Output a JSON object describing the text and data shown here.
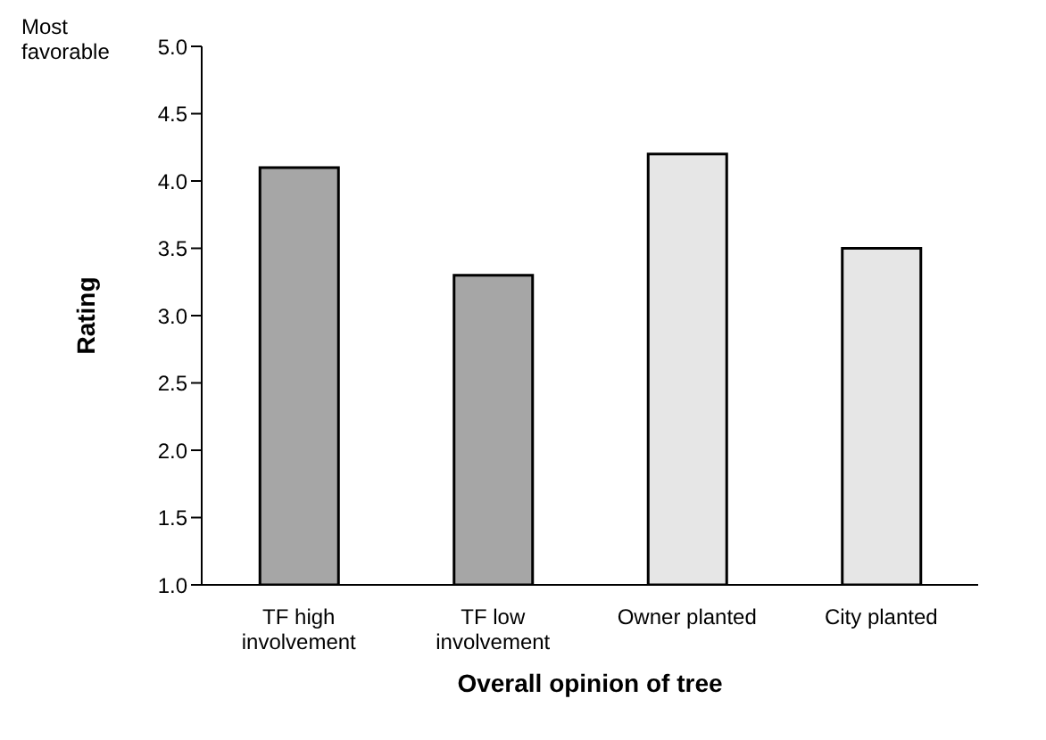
{
  "chart_data": {
    "type": "bar",
    "xlabel": "Overall opinion of tree",
    "ylabel": "Rating",
    "categories": [
      "TF high involvement",
      "TF low involvement",
      "Owner planted",
      "City planted"
    ],
    "values": [
      4.1,
      3.3,
      4.2,
      3.5
    ],
    "colors": [
      "#a6a6a6",
      "#a6a6a6",
      "#e6e6e6",
      "#e6e6e6"
    ],
    "ylim": [
      1,
      5
    ],
    "yticks": [
      {
        "value": 1,
        "label": "1.0"
      },
      {
        "value": 1.5,
        "label": "1.5"
      },
      {
        "value": 2,
        "label": "2.0"
      },
      {
        "value": 2.5,
        "label": "2.5"
      },
      {
        "value": 3,
        "label": "3.0"
      },
      {
        "value": 3.5,
        "label": "3.5"
      },
      {
        "value": 4,
        "label": "4.0"
      },
      {
        "value": 4.5,
        "label": "4.5"
      },
      {
        "value": 5,
        "label": "5.0"
      }
    ],
    "annotations": [
      "Most favorable"
    ],
    "grid": false,
    "legend": false
  }
}
